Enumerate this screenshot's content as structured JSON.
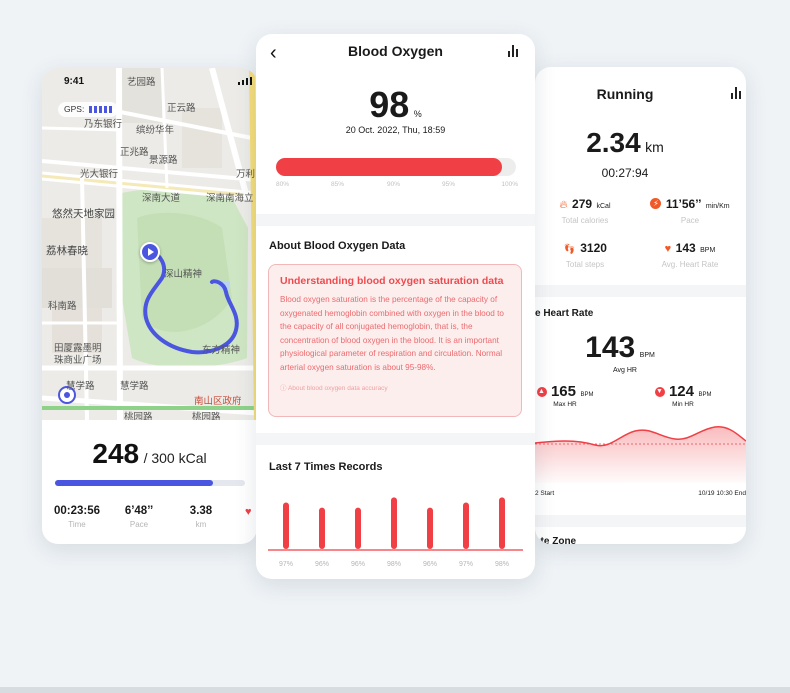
{
  "left_card": {
    "status_time": "9:41",
    "gps_label": "GPS:",
    "map_labels": [
      "艺园路",
      "正云路",
      "乃东银行",
      "缤纷华年",
      "正兆路",
      "景源路",
      "光大银行",
      "光大北路",
      "深南大道",
      "深南南海立",
      "万利",
      "悠然天地家园",
      "荔林春晓",
      "科南路",
      "南山大道",
      "田厦露墨明",
      "珠商业广场",
      "慧学路",
      "慧学路",
      "南山区政府",
      "桃园路",
      "桃园路",
      "深山精神",
      "东方精神"
    ],
    "calories": "248",
    "calories_goal": "/ 300 kCal",
    "progress_fraction": 0.83,
    "stats": [
      {
        "value": "00:23:56",
        "label": "Time"
      },
      {
        "value": "6’48’’",
        "label": "Pace"
      },
      {
        "value": "3.38",
        "label": "km"
      }
    ]
  },
  "middle_card": {
    "title": "Blood Oxygen",
    "value": "98",
    "unit": "%",
    "datetime": "20 Oct. 2022, Thu, 18:59",
    "bar_fraction": 0.94,
    "scale": [
      "80%",
      "85%",
      "90%",
      "95%",
      "100%"
    ],
    "about_title": "About Blood Oxygen Data",
    "info_title": "Understanding blood oxygen saturation data",
    "info_body": "Blood oxygen saturation is the percentage of the capacity of oxygenated hemoglobin combined with oxygen in the blood to the capacity of all conjugated hemoglobin, that is, the concentration of blood oxygen in the blood. It is an important physiological parameter of respiration and circulation. Normal arterial oxygen saturation is about 95-98%.",
    "info_link": "ⓘ About blood oxygen data accuracy",
    "records_title": "Last 7 Times Records",
    "chart_data": {
      "type": "bar",
      "categories": [
        "97%",
        "96%",
        "96%",
        "98%",
        "96%",
        "97%",
        "98%"
      ],
      "values": [
        97,
        96,
        96,
        98,
        96,
        97,
        98
      ],
      "ylim": [
        80,
        100
      ],
      "color": "#f03f45"
    }
  },
  "right_card": {
    "title": "Running",
    "distance": "2.34",
    "distance_unit": "km",
    "duration": "00:27:94",
    "metrics": [
      {
        "value": "279",
        "unit": "kCal",
        "label": "Total calories",
        "icon": "fire-icon"
      },
      {
        "value": "11’56’’",
        "unit": "min/Km",
        "label": "Pace",
        "icon": "lightning-icon"
      },
      {
        "value": "3120",
        "unit": "",
        "label": "Total steps",
        "icon": "footprints-icon"
      },
      {
        "value": "143",
        "unit": "BPM",
        "label": "Avg. Heart Rate",
        "icon": "heart-icon"
      }
    ],
    "hr_title": "e Heart Rate",
    "avg_hr": "143",
    "avg_hr_unit": "BPM",
    "avg_hr_label": "Avg HR",
    "max_hr": "165",
    "max_hr_unit": "BPM",
    "max_hr_label": "Max HR",
    "min_hr": "124",
    "min_hr_unit": "BPM",
    "min_hr_label": "Min HR",
    "start_label": "2 Start",
    "end_label": "10/19 10:30 End",
    "zone_label": "ate Zone"
  },
  "colors": {
    "accent_red": "#f03f45",
    "accent_blue": "#4a55e0",
    "orange": "#f05a28",
    "info_bg": "#fdeeee"
  }
}
